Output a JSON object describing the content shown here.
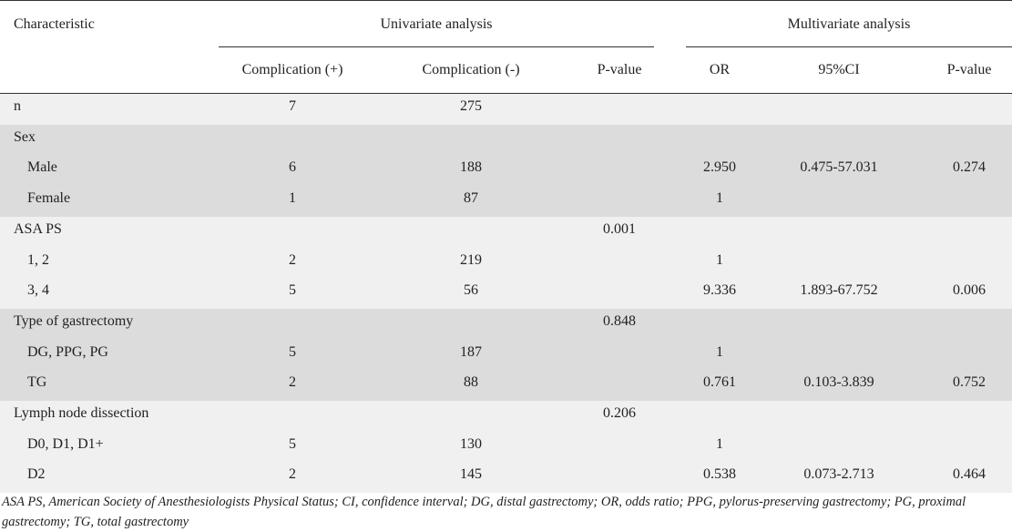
{
  "header": {
    "characteristic": "Characteristic",
    "univariate": "Univariate analysis",
    "multivariate": "Multivariate analysis",
    "columns": [
      "Complication (+)",
      "Complication (-)",
      "P-value",
      "OR",
      "95%CI",
      "P-value"
    ]
  },
  "groups": [
    {
      "label": "n",
      "cells": [
        "7",
        "275",
        null,
        null,
        null,
        null
      ],
      "items": []
    },
    {
      "label": "Sex",
      "cells": [
        null,
        null,
        null,
        null,
        null,
        null
      ],
      "items": [
        {
          "label": "Male",
          "cells": [
            "6",
            "188",
            null,
            "2.950",
            "0.475-57.031",
            "0.274"
          ]
        },
        {
          "label": "Female",
          "cells": [
            "1",
            "87",
            null,
            "1",
            null,
            null
          ]
        }
      ]
    },
    {
      "label": "ASA PS",
      "cells": [
        null,
        null,
        "0.001",
        null,
        null,
        null
      ],
      "items": [
        {
          "label": "1, 2",
          "cells": [
            "2",
            "219",
            null,
            "1",
            null,
            null
          ]
        },
        {
          "label": "3, 4",
          "cells": [
            "5",
            "56",
            null,
            "9.336",
            "1.893-67.752",
            "0.006"
          ]
        }
      ]
    },
    {
      "label": "Type of gastrectomy",
      "cells": [
        null,
        null,
        "0.848",
        null,
        null,
        null
      ],
      "items": [
        {
          "label": "DG, PPG, PG",
          "cells": [
            "5",
            "187",
            null,
            "1",
            null,
            null
          ]
        },
        {
          "label": "TG",
          "cells": [
            "2",
            "88",
            null,
            "0.761",
            "0.103-3.839",
            "0.752"
          ]
        }
      ]
    },
    {
      "label": "Lymph node dissection",
      "cells": [
        null,
        null,
        "0.206",
        null,
        null,
        null
      ],
      "items": [
        {
          "label": "D0, D1, D1+",
          "cells": [
            "5",
            "130",
            null,
            "1",
            null,
            null
          ]
        },
        {
          "label": "D2",
          "cells": [
            "2",
            "145",
            null,
            "0.538",
            "0.073-2.713",
            "0.464"
          ]
        }
      ]
    }
  ],
  "footnote": "ASA PS, American Society of Anesthesiologists Physical Status; CI, confidence interval; DG, distal gastrectomy; OR, odds ratio; PPG, pylorus-preserving gastrectomy; PG, proximal gastrectomy; TG, total gastrectomy"
}
